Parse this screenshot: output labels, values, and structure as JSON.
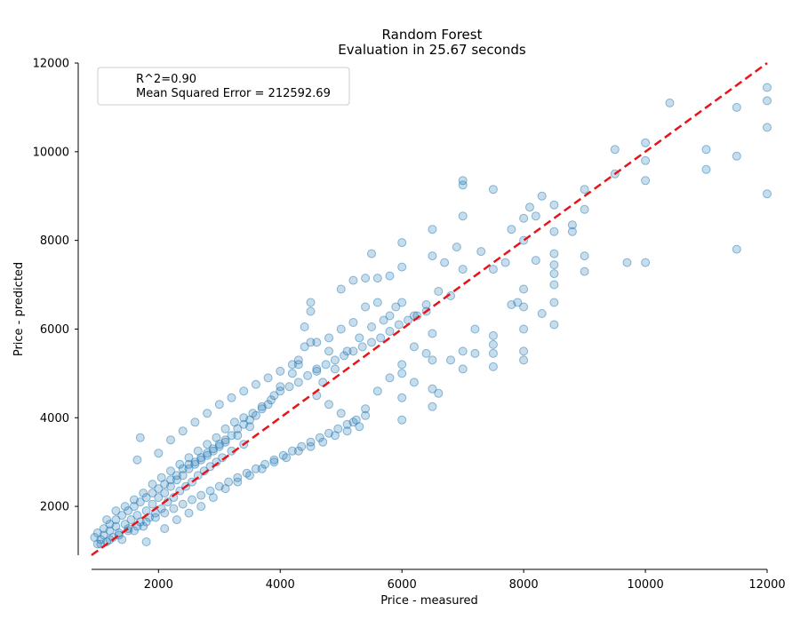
{
  "chart_data": {
    "type": "scatter",
    "title": "Random Forest",
    "subtitle": "Evaluation in 25.67 seconds",
    "xlabel": "Price - measured",
    "ylabel": "Price - predicted",
    "xlim": [
      900,
      12000
    ],
    "ylim": [
      900,
      12000
    ],
    "xticks": [
      2000,
      4000,
      6000,
      8000,
      10000,
      12000
    ],
    "yticks": [
      2000,
      4000,
      6000,
      8000,
      10000,
      12000
    ],
    "grid": false,
    "legend": {
      "placement": "top-left",
      "entries": [
        "R^2=0.90",
        "Mean Squared Error = 212592.69"
      ]
    },
    "reference_line": {
      "style": "dashed",
      "color": "#e8131b",
      "from": [
        900,
        900
      ],
      "to": [
        12000,
        12000
      ]
    },
    "marker_color": "#1f77b4",
    "marker_opacity": 0.25,
    "points": [
      [
        950,
        1300
      ],
      [
        1000,
        1150
      ],
      [
        1050,
        1250
      ],
      [
        1100,
        1350
      ],
      [
        1150,
        1200
      ],
      [
        1200,
        1450
      ],
      [
        1250,
        1300
      ],
      [
        1300,
        1550
      ],
      [
        1350,
        1400
      ],
      [
        1400,
        1250
      ],
      [
        1450,
        1600
      ],
      [
        1500,
        1500
      ],
      [
        1550,
        1700
      ],
      [
        1600,
        1450
      ],
      [
        1650,
        1800
      ],
      [
        1700,
        1650
      ],
      [
        1750,
        1550
      ],
      [
        1800,
        1900
      ],
      [
        1850,
        1750
      ],
      [
        1900,
        2050
      ],
      [
        1950,
        1850
      ],
      [
        2000,
        2200
      ],
      [
        2050,
        1950
      ],
      [
        2100,
        2300
      ],
      [
        2150,
        2100
      ],
      [
        2200,
        2450
      ],
      [
        2250,
        2200
      ],
      [
        2300,
        2600
      ],
      [
        2350,
        2350
      ],
      [
        2400,
        2700
      ],
      [
        2450,
        2450
      ],
      [
        2500,
        2850
      ],
      [
        2550,
        2550
      ],
      [
        2600,
        2950
      ],
      [
        2650,
        2700
      ],
      [
        2700,
        3050
      ],
      [
        2750,
        2800
      ],
      [
        2800,
        3150
      ],
      [
        2850,
        2900
      ],
      [
        2900,
        3250
      ],
      [
        2950,
        3000
      ],
      [
        3000,
        3350
      ],
      [
        3050,
        3100
      ],
      [
        3100,
        3450
      ],
      [
        3200,
        3250
      ],
      [
        3300,
        3600
      ],
      [
        3400,
        3400
      ],
      [
        3500,
        3800
      ],
      [
        1700,
        3550
      ],
      [
        1650,
        3050
      ],
      [
        1800,
        1200
      ],
      [
        2100,
        1500
      ],
      [
        2300,
        1700
      ],
      [
        2500,
        1850
      ],
      [
        2700,
        2000
      ],
      [
        2900,
        2200
      ],
      [
        3100,
        2400
      ],
      [
        3300,
        2550
      ],
      [
        3500,
        2700
      ],
      [
        3700,
        2850
      ],
      [
        3900,
        3000
      ],
      [
        4100,
        3100
      ],
      [
        4300,
        3250
      ],
      [
        4500,
        3350
      ],
      [
        4700,
        3450
      ],
      [
        4900,
        3600
      ],
      [
        5100,
        3700
      ],
      [
        5300,
        3800
      ],
      [
        2000,
        3200
      ],
      [
        2200,
        3500
      ],
      [
        2400,
        3700
      ],
      [
        2600,
        3900
      ],
      [
        2800,
        4100
      ],
      [
        3000,
        4300
      ],
      [
        3200,
        4450
      ],
      [
        3400,
        4600
      ],
      [
        3600,
        4750
      ],
      [
        3800,
        4900
      ],
      [
        4000,
        5050
      ],
      [
        4200,
        5200
      ],
      [
        4400,
        6050
      ],
      [
        4500,
        6600
      ],
      [
        4500,
        6400
      ],
      [
        4500,
        5700
      ],
      [
        4300,
        5300
      ],
      [
        4600,
        5100
      ],
      [
        4800,
        5500
      ],
      [
        5000,
        6900
      ],
      [
        5200,
        7100
      ],
      [
        5400,
        7150
      ],
      [
        5500,
        7700
      ],
      [
        5600,
        7150
      ],
      [
        5800,
        7200
      ],
      [
        6000,
        7950
      ],
      [
        6000,
        7400
      ],
      [
        5900,
        6500
      ],
      [
        5700,
        6200
      ],
      [
        5500,
        6050
      ],
      [
        5300,
        5800
      ],
      [
        5100,
        5500
      ],
      [
        4900,
        5100
      ],
      [
        4700,
        4800
      ],
      [
        4600,
        4500
      ],
      [
        4800,
        4300
      ],
      [
        5000,
        4100
      ],
      [
        5200,
        3900
      ],
      [
        5400,
        4200
      ],
      [
        5600,
        4600
      ],
      [
        5800,
        4900
      ],
      [
        6000,
        5200
      ],
      [
        6200,
        5600
      ],
      [
        6000,
        5000
      ],
      [
        6000,
        4450
      ],
      [
        6000,
        3950
      ],
      [
        6200,
        4800
      ],
      [
        6400,
        5450
      ],
      [
        6500,
        5900
      ],
      [
        6500,
        5300
      ],
      [
        6500,
        4650
      ],
      [
        6500,
        4250
      ],
      [
        6600,
        4550
      ],
      [
        6800,
        5300
      ],
      [
        7000,
        5500
      ],
      [
        7000,
        5100
      ],
      [
        7200,
        5450
      ],
      [
        7200,
        6000
      ],
      [
        7500,
        5850
      ],
      [
        7500,
        5650
      ],
      [
        7500,
        5450
      ],
      [
        7500,
        5150
      ],
      [
        7800,
        6550
      ],
      [
        7900,
        6600
      ],
      [
        8000,
        6500
      ],
      [
        8000,
        6000
      ],
      [
        8000,
        5500
      ],
      [
        8000,
        5300
      ],
      [
        8000,
        6900
      ],
      [
        8200,
        7550
      ],
      [
        8300,
        6350
      ],
      [
        8500,
        6600
      ],
      [
        8500,
        6100
      ],
      [
        8500,
        7000
      ],
      [
        8500,
        7450
      ],
      [
        8500,
        7250
      ],
      [
        8800,
        8200
      ],
      [
        9000,
        7300
      ],
      [
        9000,
        7650
      ],
      [
        9000,
        8700
      ],
      [
        9000,
        9150
      ],
      [
        9500,
        9500
      ],
      [
        9700,
        7500
      ],
      [
        10000,
        7500
      ],
      [
        10000,
        9350
      ],
      [
        10000,
        9800
      ],
      [
        10000,
        10200
      ],
      [
        10400,
        11100
      ],
      [
        11000,
        9600
      ],
      [
        11000,
        10050
      ],
      [
        11500,
        7800
      ],
      [
        11500,
        9900
      ],
      [
        11500,
        11000
      ],
      [
        12000,
        11450
      ],
      [
        12000,
        11150
      ],
      [
        12000,
        10550
      ],
      [
        12000,
        9050
      ],
      [
        6500,
        8250
      ],
      [
        6500,
        7650
      ],
      [
        6700,
        7500
      ],
      [
        6900,
        7850
      ],
      [
        7000,
        8550
      ],
      [
        7000,
        9350
      ],
      [
        7000,
        9250
      ],
      [
        7300,
        7750
      ],
      [
        7500,
        9150
      ],
      [
        7500,
        7350
      ],
      [
        7700,
        7500
      ],
      [
        7800,
        8250
      ],
      [
        8000,
        8000
      ],
      [
        8000,
        8500
      ],
      [
        8100,
        8750
      ],
      [
        8200,
        8550
      ],
      [
        8300,
        9000
      ],
      [
        8500,
        8800
      ],
      [
        8500,
        8200
      ],
      [
        8500,
        7700
      ],
      [
        8800,
        8350
      ],
      [
        9500,
        10050
      ],
      [
        7000,
        7350
      ],
      [
        6800,
        6750
      ],
      [
        6600,
        6850
      ],
      [
        6400,
        6550
      ],
      [
        6200,
        6300
      ],
      [
        6000,
        6600
      ],
      [
        5800,
        6300
      ],
      [
        5600,
        6600
      ],
      [
        5400,
        6500
      ],
      [
        5200,
        6150
      ],
      [
        5000,
        6000
      ],
      [
        4800,
        5800
      ],
      [
        4600,
        5700
      ],
      [
        4400,
        5600
      ],
      [
        4300,
        5200
      ],
      [
        4200,
        5000
      ],
      [
        4000,
        4700
      ],
      [
        3900,
        4500
      ],
      [
        3800,
        4300
      ],
      [
        3700,
        4200
      ],
      [
        3600,
        4050
      ],
      [
        3500,
        3950
      ],
      [
        3400,
        3850
      ],
      [
        3300,
        3750
      ],
      [
        3200,
        3600
      ],
      [
        3100,
        3500
      ],
      [
        3000,
        3400
      ],
      [
        2900,
        3300
      ],
      [
        2800,
        3200
      ],
      [
        2700,
        3100
      ],
      [
        2600,
        3000
      ],
      [
        2500,
        2950
      ],
      [
        2400,
        2850
      ],
      [
        2300,
        2700
      ],
      [
        2200,
        2600
      ],
      [
        2100,
        2500
      ],
      [
        2000,
        2400
      ],
      [
        1900,
        2300
      ],
      [
        1800,
        2200
      ],
      [
        1700,
        2100
      ],
      [
        1600,
        2000
      ],
      [
        1500,
        1900
      ],
      [
        1400,
        1800
      ],
      [
        1300,
        1700
      ],
      [
        1200,
        1600
      ],
      [
        1100,
        1500
      ],
      [
        1000,
        1400
      ],
      [
        1150,
        1700
      ],
      [
        1300,
        1900
      ],
      [
        1450,
        2000
      ],
      [
        1600,
        2150
      ],
      [
        1750,
        2300
      ],
      [
        1900,
        2500
      ],
      [
        2050,
        2650
      ],
      [
        2200,
        2800
      ],
      [
        2350,
        2950
      ],
      [
        2500,
        3100
      ],
      [
        2650,
        3250
      ],
      [
        2800,
        3400
      ],
      [
        2950,
        3550
      ],
      [
        3100,
        3750
      ],
      [
        3250,
        3900
      ],
      [
        3400,
        4000
      ],
      [
        3550,
        4100
      ],
      [
        3700,
        4250
      ],
      [
        3850,
        4400
      ],
      [
        4000,
        4600
      ],
      [
        4150,
        4700
      ],
      [
        4300,
        4800
      ],
      [
        4450,
        4950
      ],
      [
        4600,
        5050
      ],
      [
        4750,
        5200
      ],
      [
        4900,
        5300
      ],
      [
        5050,
        5400
      ],
      [
        5200,
        5500
      ],
      [
        5350,
        5600
      ],
      [
        5500,
        5700
      ],
      [
        5650,
        5800
      ],
      [
        5800,
        5950
      ],
      [
        5950,
        6100
      ],
      [
        6100,
        6200
      ],
      [
        6250,
        6300
      ],
      [
        6400,
        6400
      ],
      [
        1050,
        1150
      ],
      [
        1200,
        1250
      ],
      [
        1350,
        1350
      ],
      [
        1500,
        1450
      ],
      [
        1650,
        1550
      ],
      [
        1800,
        1650
      ],
      [
        1950,
        1750
      ],
      [
        2100,
        1850
      ],
      [
        2250,
        1950
      ],
      [
        2400,
        2050
      ],
      [
        2550,
        2150
      ],
      [
        2700,
        2250
      ],
      [
        2850,
        2350
      ],
      [
        3000,
        2450
      ],
      [
        3150,
        2550
      ],
      [
        3300,
        2650
      ],
      [
        3450,
        2750
      ],
      [
        3600,
        2850
      ],
      [
        3750,
        2950
      ],
      [
        3900,
        3050
      ],
      [
        4050,
        3150
      ],
      [
        4200,
        3250
      ],
      [
        4350,
        3350
      ],
      [
        4500,
        3450
      ],
      [
        4650,
        3550
      ],
      [
        4800,
        3650
      ],
      [
        4950,
        3750
      ],
      [
        5100,
        3850
      ],
      [
        5250,
        3950
      ],
      [
        5400,
        4050
      ]
    ]
  }
}
